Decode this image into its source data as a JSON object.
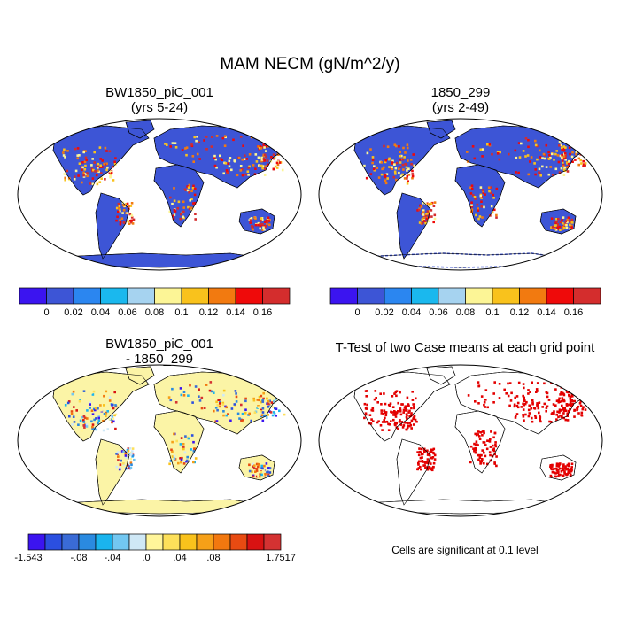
{
  "figure": {
    "title": "MAM NECM (gN/m^2/y)",
    "note": "Cells are significant at 0.1 level"
  },
  "colors": {
    "abs_scale": [
      "#3b14f0",
      "#3d55d6",
      "#2b86f0",
      "#1ab8ee",
      "#a6d3f0",
      "#fcf596",
      "#f9c21c",
      "#f27a10",
      "#ef0a0a",
      "#d42d2d"
    ],
    "diff_scale": [
      "#3b14f0",
      "#2b4fe0",
      "#3a6bd6",
      "#2a8ae0",
      "#1ab4ee",
      "#72c7f1",
      "#cfe8f6",
      "#fff59a",
      "#fde05a",
      "#f9c21c",
      "#f6a018",
      "#f2780f",
      "#e84b12",
      "#d81212",
      "#d43232"
    ],
    "land_base": "#3d55d6",
    "diff_land": "#fbf4a6",
    "ttest_mark": "#e30000"
  },
  "chart_data": [
    {
      "type": "heatmap",
      "title": "BW1850_piC_001",
      "subtitle": "(yrs 5-24)",
      "colorbar": {
        "labels": [
          "0",
          "0.02",
          "0.04",
          "0.06",
          "0.08",
          "0.1",
          "0.12",
          "0.14",
          "0.16"
        ],
        "levels": [
          0,
          0.02,
          0.04,
          0.06,
          0.08,
          0.1,
          0.12,
          0.14,
          0.16
        ]
      }
    },
    {
      "type": "heatmap",
      "title": "1850_299",
      "subtitle": "(yrs 2-49)",
      "colorbar": {
        "labels": [
          "0",
          "0.02",
          "0.04",
          "0.06",
          "0.08",
          "0.1",
          "0.12",
          "0.14",
          "0.16"
        ],
        "levels": [
          0,
          0.02,
          0.04,
          0.06,
          0.08,
          0.1,
          0.12,
          0.14,
          0.16
        ]
      }
    },
    {
      "type": "heatmap",
      "title": "BW1850_piC_001",
      "subtitle": "- 1850_299",
      "colorbar": {
        "labels": [
          "-1.543",
          "-.08",
          "-.04",
          ".0",
          ".04",
          ".08",
          "1.7517"
        ],
        "range": [
          -1.543,
          1.7517
        ]
      }
    },
    {
      "type": "heatmap",
      "title": "T-Test of two Case means at each grid point",
      "subtitle": ""
    }
  ]
}
